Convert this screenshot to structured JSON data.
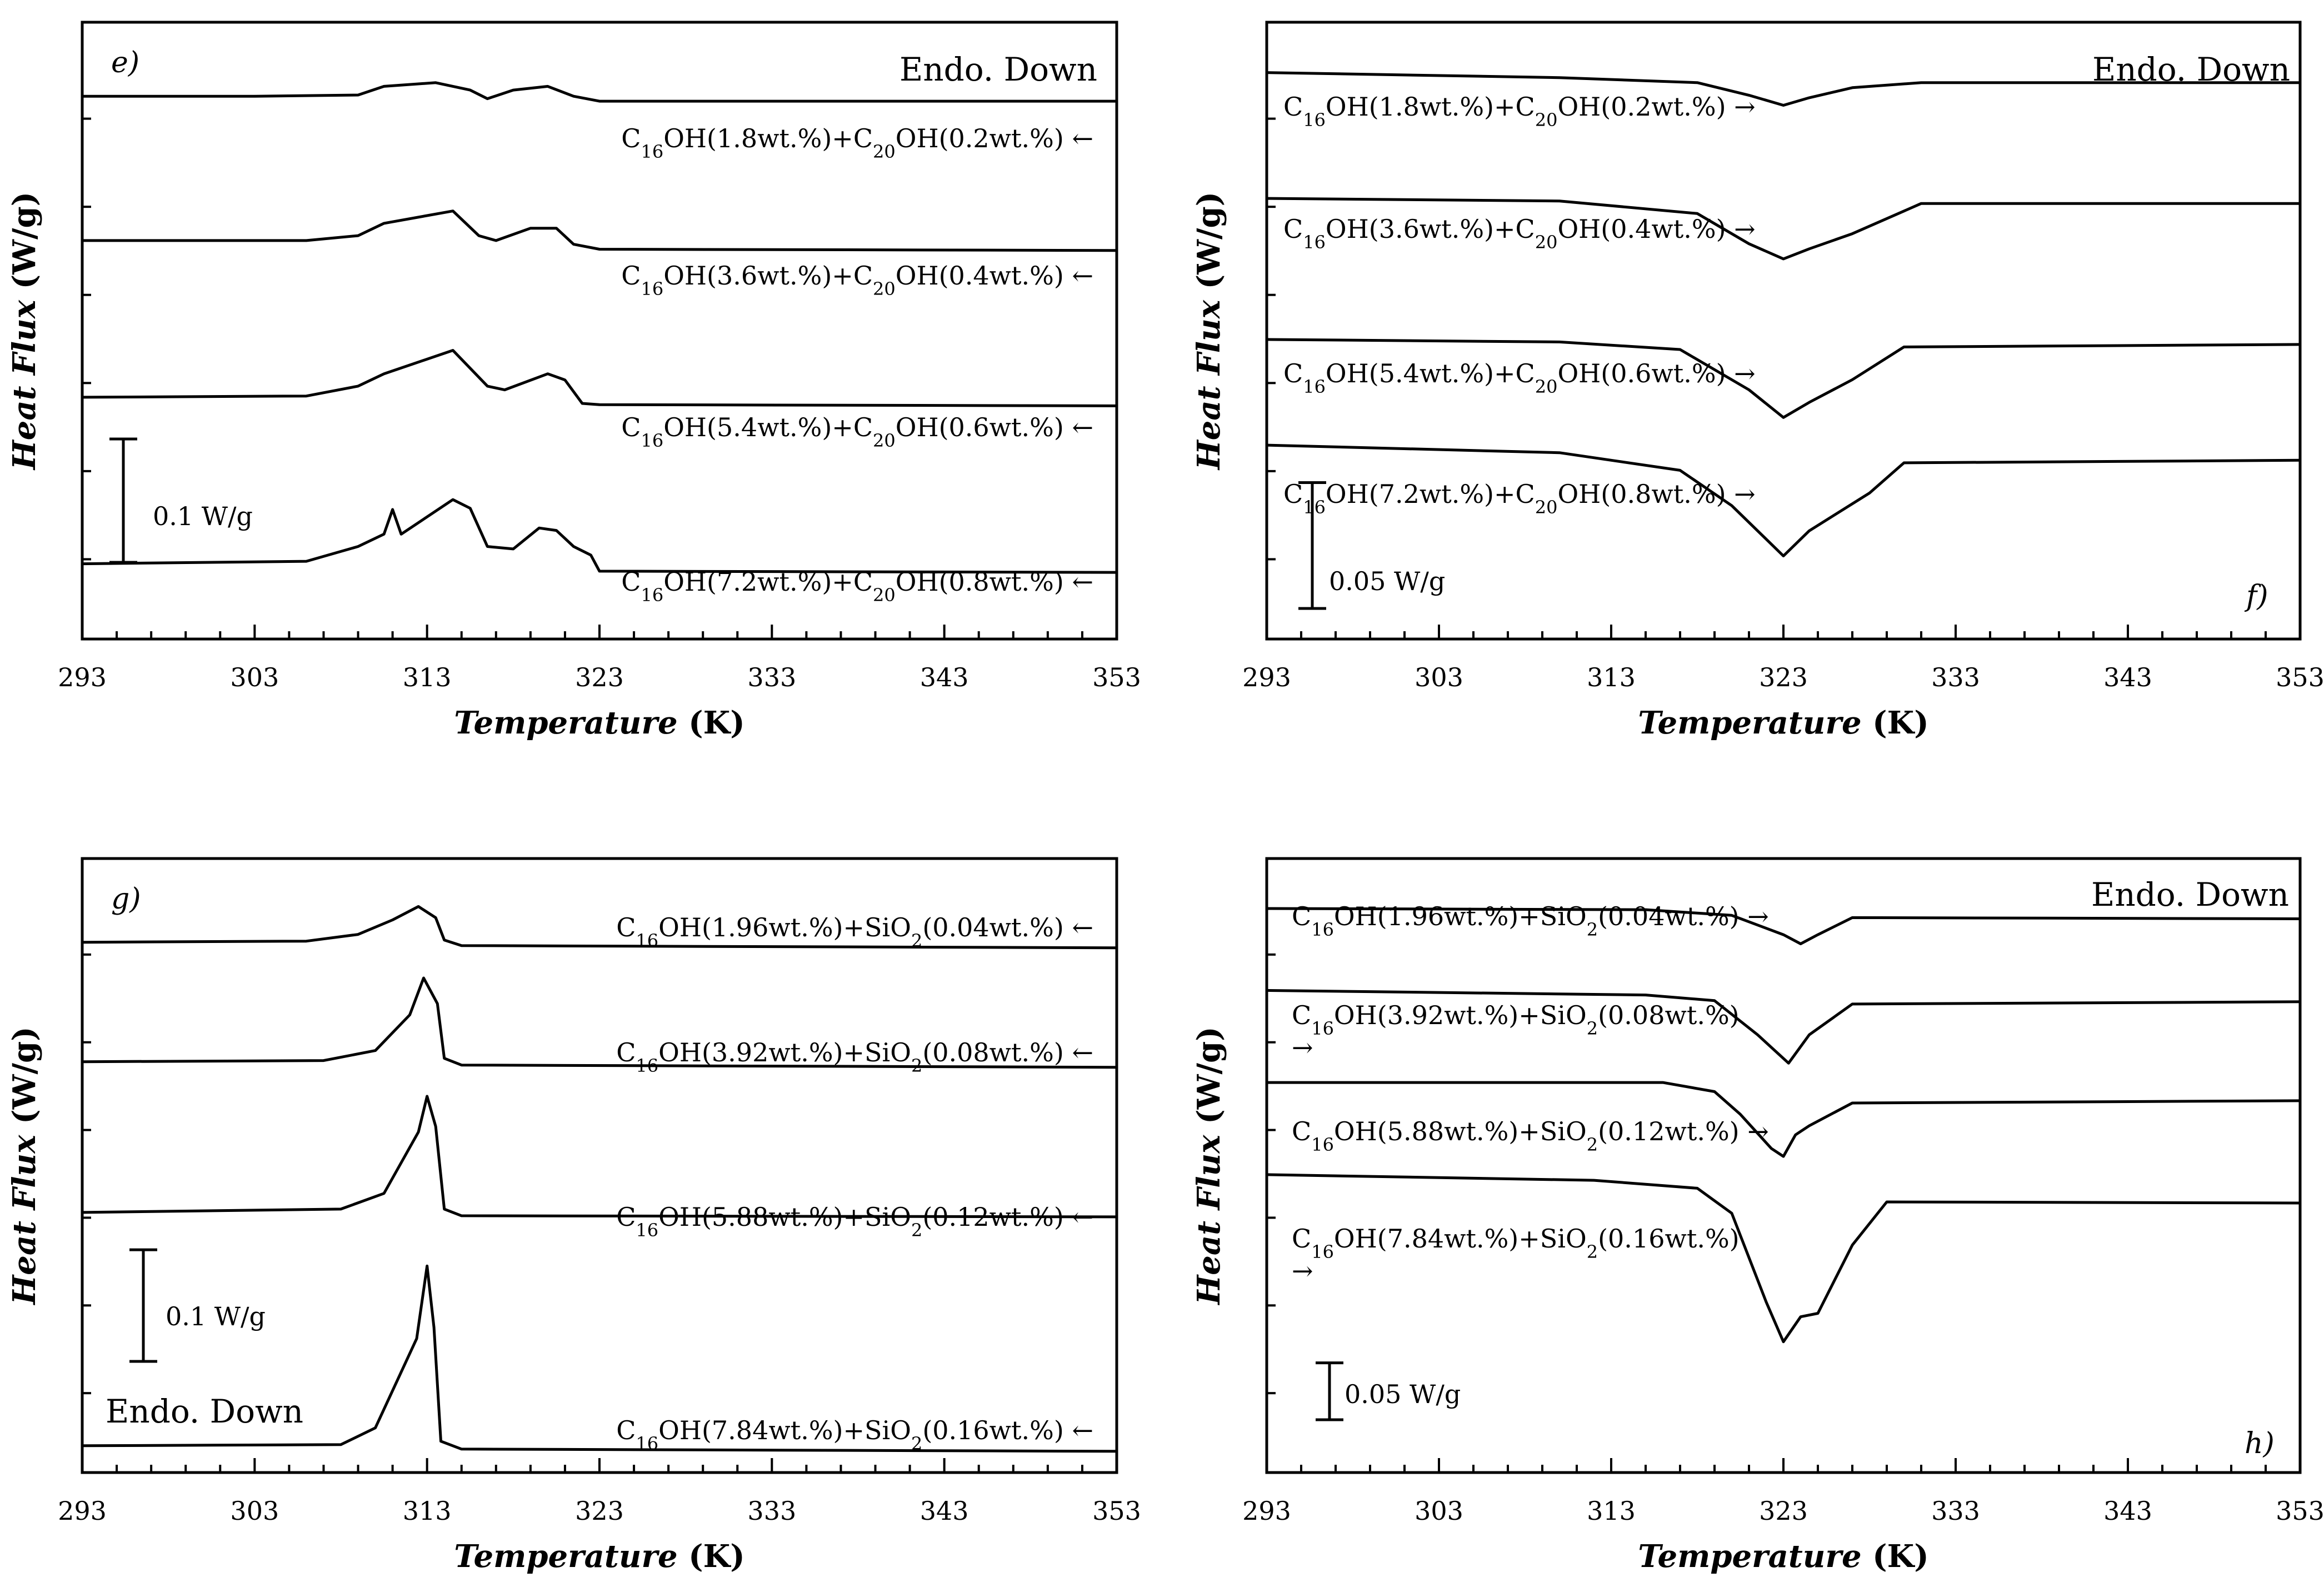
{
  "chart_data": [
    {
      "panel": "e)",
      "type": "line",
      "xlabel_italic": "Temperature",
      "xlabel_unit": "(K)",
      "ylabel_italic": "Heat Flux",
      "ylabel_unit": "(W/g)",
      "xlim": [
        293,
        353
      ],
      "xticks": [
        293,
        303,
        313,
        323,
        333,
        343,
        353
      ],
      "ylim": [
        -0.05,
        0.45
      ],
      "direction_label": "Endo. Down",
      "scale_bar": {
        "label": "0.1 W/g",
        "value": 0.1
      },
      "series": [
        {
          "name": "C16OH(1.8wt.%)+C20OH(0.2wt.%) ←",
          "label_parts": {
            "a": "1.8",
            "b": "C",
            "b_sub": "20",
            "c": "0.2",
            "arrow": "←"
          },
          "points": [
            [
              293,
              0.39
            ],
            [
              303,
              0.39
            ],
            [
              309,
              0.391
            ],
            [
              310.5,
              0.398
            ],
            [
              313.5,
              0.401
            ],
            [
              315.5,
              0.395
            ],
            [
              316.5,
              0.388
            ],
            [
              318,
              0.395
            ],
            [
              320,
              0.398
            ],
            [
              321.5,
              0.39
            ],
            [
              323,
              0.386
            ],
            [
              353,
              0.386
            ]
          ]
        },
        {
          "name": "C16OH(3.6wt.%)+C20OH(0.4wt.%) ←",
          "label_parts": {
            "a": "3.6",
            "b": "C",
            "b_sub": "20",
            "c": "0.4",
            "arrow": "←"
          },
          "points": [
            [
              293,
              0.273
            ],
            [
              306,
              0.273
            ],
            [
              309,
              0.277
            ],
            [
              310.5,
              0.287
            ],
            [
              314.5,
              0.297
            ],
            [
              316,
              0.277
            ],
            [
              317,
              0.273
            ],
            [
              319,
              0.283
            ],
            [
              320.5,
              0.283
            ],
            [
              321.5,
              0.27
            ],
            [
              323,
              0.266
            ],
            [
              353,
              0.265
            ]
          ]
        },
        {
          "name": "C16OH(5.4wt.%)+C20OH(0.6wt.%) ←",
          "label_parts": {
            "a": "5.4",
            "b": "C",
            "b_sub": "20",
            "c": "0.6",
            "arrow": "←"
          },
          "points": [
            [
              293,
              0.146
            ],
            [
              306,
              0.147
            ],
            [
              309,
              0.155
            ],
            [
              310.5,
              0.165
            ],
            [
              314.5,
              0.184
            ],
            [
              316.5,
              0.155
            ],
            [
              317.5,
              0.152
            ],
            [
              320,
              0.165
            ],
            [
              321,
              0.16
            ],
            [
              322,
              0.141
            ],
            [
              323,
              0.14
            ],
            [
              353,
              0.139
            ]
          ]
        },
        {
          "name": "C16OH(7.2wt.%)+C20OH(0.8wt.%) ←",
          "label_parts": {
            "a": "7.2",
            "b": "C",
            "b_sub": "20",
            "c": "0.8",
            "arrow": "←"
          },
          "points": [
            [
              293,
              0.011
            ],
            [
              306,
              0.013
            ],
            [
              309,
              0.025
            ],
            [
              310.5,
              0.035
            ],
            [
              311,
              0.055
            ],
            [
              311.5,
              0.035
            ],
            [
              314.5,
              0.063
            ],
            [
              315.5,
              0.056
            ],
            [
              316.5,
              0.025
            ],
            [
              318,
              0.023
            ],
            [
              319.5,
              0.04
            ],
            [
              320.5,
              0.038
            ],
            [
              321.5,
              0.025
            ],
            [
              322.5,
              0.018
            ],
            [
              323,
              0.005
            ],
            [
              353,
              0.004
            ]
          ]
        }
      ]
    },
    {
      "panel": "f)",
      "type": "line",
      "xlabel_italic": "Temperature",
      "xlabel_unit": "(K)",
      "ylabel_italic": "Heat Flux",
      "ylabel_unit": "(W/g)",
      "xlim": [
        293,
        353
      ],
      "xticks": [
        293,
        303,
        313,
        323,
        333,
        343,
        353
      ],
      "ylim": [
        -0.025,
        0.22
      ],
      "direction_label": "Endo. Down",
      "scale_bar": {
        "label": "0.05 W/g",
        "value": 0.05
      },
      "series": [
        {
          "name": "C16OH(1.8wt.%)+C20OH(0.2wt.%) →",
          "label_parts": {
            "a": "1.8",
            "b": "C",
            "b_sub": "20",
            "c": "0.2",
            "arrow": "→"
          },
          "points": [
            [
              293,
              0.2
            ],
            [
              310,
              0.198
            ],
            [
              318,
              0.196
            ],
            [
              321,
              0.191
            ],
            [
              323,
              0.187
            ],
            [
              324.5,
              0.19
            ],
            [
              327,
              0.194
            ],
            [
              331,
              0.196
            ],
            [
              353,
              0.196
            ]
          ]
        },
        {
          "name": "C16OH(3.6wt.%)+C20OH(0.4wt.%) →",
          "label_parts": {
            "a": "3.6",
            "b": "C",
            "b_sub": "20",
            "c": "0.4",
            "arrow": "→"
          },
          "points": [
            [
              293,
              0.15
            ],
            [
              310,
              0.149
            ],
            [
              318,
              0.144
            ],
            [
              321,
              0.132
            ],
            [
              323,
              0.126
            ],
            [
              324.5,
              0.13
            ],
            [
              327,
              0.136
            ],
            [
              331,
              0.148
            ],
            [
              353,
              0.148
            ]
          ]
        },
        {
          "name": "C16OH(5.4wt.%)+C20OH(0.6wt.%) →",
          "label_parts": {
            "a": "5.4",
            "b": "C",
            "b_sub": "20",
            "c": "0.6",
            "arrow": "→"
          },
          "points": [
            [
              293,
              0.094
            ],
            [
              310,
              0.093
            ],
            [
              317,
              0.09
            ],
            [
              321,
              0.074
            ],
            [
              323,
              0.063
            ],
            [
              324.5,
              0.069
            ],
            [
              327,
              0.078
            ],
            [
              330,
              0.091
            ],
            [
              353,
              0.092
            ]
          ]
        },
        {
          "name": "C16OH(7.2wt.%)+C20OH(0.8wt.%) →",
          "label_parts": {
            "a": "7.2",
            "b": "C",
            "b_sub": "20",
            "c": "0.8",
            "arrow": "→"
          },
          "points": [
            [
              293,
              0.052
            ],
            [
              310,
              0.049
            ],
            [
              317,
              0.042
            ],
            [
              320,
              0.028
            ],
            [
              323,
              0.008
            ],
            [
              324.5,
              0.018
            ],
            [
              328,
              0.033
            ],
            [
              330,
              0.045
            ],
            [
              353,
              0.046
            ]
          ]
        }
      ]
    },
    {
      "panel": "g)",
      "type": "line",
      "xlabel_italic": "Temperature",
      "xlabel_unit": "(K)",
      "ylabel_italic": "Heat Flux",
      "ylabel_unit": "(W/g)",
      "xlim": [
        293,
        353
      ],
      "xticks": [
        293,
        303,
        313,
        323,
        333,
        343,
        353
      ],
      "ylim": [
        -0.01,
        0.54
      ],
      "direction_label": "Endo. Down",
      "scale_bar": {
        "label": "0.1 W/g",
        "value": 0.1
      },
      "series": [
        {
          "name": "C16OH(1.96wt.%)+SiO2(0.04wt.%) ←",
          "label_parts": {
            "a": "1.96",
            "b": "SiO",
            "b_sub": "2",
            "c": "0.04",
            "arrow": "←"
          },
          "points": [
            [
              293,
              0.465
            ],
            [
              306,
              0.466
            ],
            [
              309,
              0.472
            ],
            [
              311,
              0.485
            ],
            [
              312.5,
              0.497
            ],
            [
              313.5,
              0.487
            ],
            [
              314,
              0.467
            ],
            [
              315,
              0.462
            ],
            [
              353,
              0.46
            ]
          ]
        },
        {
          "name": "C16OH(3.92wt.%)+SiO2(0.08wt.%) ←",
          "label_parts": {
            "a": "3.92",
            "b": "SiO",
            "b_sub": "2",
            "c": "0.08",
            "arrow": "←"
          },
          "points": [
            [
              293,
              0.358
            ],
            [
              307,
              0.359
            ],
            [
              310,
              0.368
            ],
            [
              312,
              0.4
            ],
            [
              312.8,
              0.433
            ],
            [
              313.6,
              0.41
            ],
            [
              314,
              0.361
            ],
            [
              315,
              0.355
            ],
            [
              353,
              0.353
            ]
          ]
        },
        {
          "name": "C16OH(5.88wt.%)+SiO2(0.12wt.%) ←",
          "label_parts": {
            "a": "5.88",
            "b": "SiO",
            "b_sub": "2",
            "c": "0.12",
            "arrow": "←"
          },
          "points": [
            [
              293,
              0.223
            ],
            [
              308,
              0.226
            ],
            [
              310.5,
              0.24
            ],
            [
              312.5,
              0.295
            ],
            [
              313,
              0.327
            ],
            [
              313.5,
              0.3
            ],
            [
              314,
              0.226
            ],
            [
              315,
              0.22
            ],
            [
              353,
              0.219
            ]
          ]
        },
        {
          "name": "C16OH(7.84wt.%)+SiO2(0.16wt.%) ←",
          "label_parts": {
            "a": "7.84",
            "b": "SiO",
            "b_sub": "2",
            "c": "0.16",
            "arrow": "←"
          },
          "points": [
            [
              293,
              0.014
            ],
            [
              308,
              0.015
            ],
            [
              310,
              0.03
            ],
            [
              312.4,
              0.11
            ],
            [
              313,
              0.175
            ],
            [
              313.4,
              0.12
            ],
            [
              313.8,
              0.018
            ],
            [
              315,
              0.011
            ],
            [
              353,
              0.009
            ]
          ]
        }
      ]
    },
    {
      "panel": "h)",
      "type": "line",
      "xlabel_italic": "Temperature",
      "xlabel_unit": "(K)",
      "ylabel_italic": "Heat Flux",
      "ylabel_unit": "(W/g)",
      "xlim": [
        293,
        353
      ],
      "xticks": [
        293,
        303,
        313,
        323,
        333,
        343,
        353
      ],
      "ylim": [
        -0.05,
        0.49
      ],
      "direction_label": "Endo. Down",
      "scale_bar": {
        "label": "0.05 W/g",
        "value": 0.05
      },
      "series": [
        {
          "name": "C16OH(1.96wt.%)+SiO2(0.04wt.%) →",
          "label_parts": {
            "a": "1.96",
            "b": "SiO",
            "b_sub": "2",
            "c": "0.04",
            "arrow": "→"
          },
          "points": [
            [
              293,
              0.446
            ],
            [
              315,
              0.445
            ],
            [
              320,
              0.44
            ],
            [
              323,
              0.423
            ],
            [
              324,
              0.415
            ],
            [
              325,
              0.423
            ],
            [
              327,
              0.438
            ],
            [
              353,
              0.437
            ]
          ]
        },
        {
          "name": "C16OH(3.92wt.%)+SiO2(0.08wt.%) →",
          "label_parts": {
            "a": "3.92",
            "b": "SiO",
            "b_sub": "2",
            "c": "0.08",
            "arrow": "→"
          },
          "points": [
            [
              293,
              0.374
            ],
            [
              315,
              0.37
            ],
            [
              319,
              0.365
            ],
            [
              321.5,
              0.335
            ],
            [
              323.3,
              0.31
            ],
            [
              324.5,
              0.335
            ],
            [
              327,
              0.362
            ],
            [
              353,
              0.364
            ]
          ]
        },
        {
          "name": "C16OH(5.88wt.%)+SiO2(0.12wt.%) →",
          "label_parts": {
            "a": "5.88",
            "b": "SiO",
            "b_sub": "2",
            "c": "0.12",
            "arrow": "→"
          },
          "points": [
            [
              293,
              0.293
            ],
            [
              316,
              0.293
            ],
            [
              319,
              0.285
            ],
            [
              320.5,
              0.265
            ],
            [
              322.3,
              0.235
            ],
            [
              323,
              0.228
            ],
            [
              323.7,
              0.247
            ],
            [
              324.5,
              0.255
            ],
            [
              327,
              0.275
            ],
            [
              353,
              0.277
            ]
          ]
        },
        {
          "name": "C16OH(7.84wt.%)+SiO2(0.16wt.%) →",
          "label_parts": {
            "a": "7.84",
            "b": "SiO",
            "b_sub": "2",
            "c": "0.16",
            "arrow": "→"
          },
          "points": [
            [
              293,
              0.212
            ],
            [
              312,
              0.207
            ],
            [
              318,
              0.2
            ],
            [
              320,
              0.178
            ],
            [
              322,
              0.1
            ],
            [
              323,
              0.065
            ],
            [
              324,
              0.087
            ],
            [
              325,
              0.09
            ],
            [
              327,
              0.15
            ],
            [
              329,
              0.188
            ],
            [
              353,
              0.187
            ]
          ]
        }
      ]
    }
  ]
}
